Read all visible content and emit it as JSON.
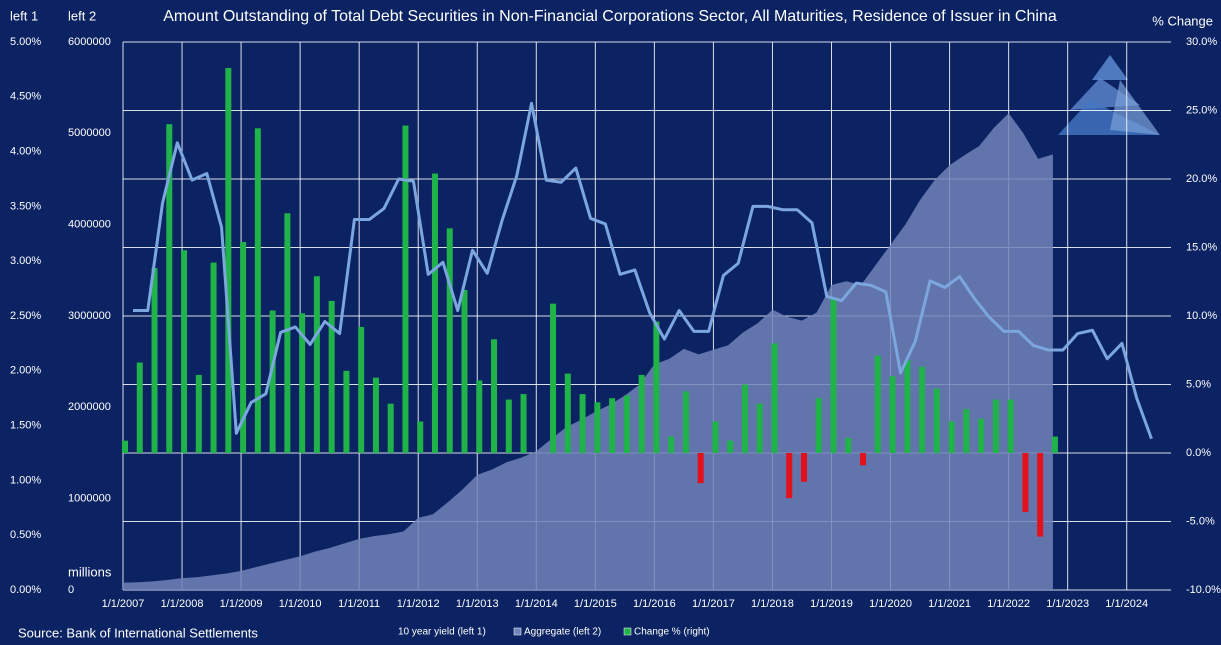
{
  "chart_data": {
    "type": "combo",
    "title": "Amount Outstanding of Total Debt Securities in Non-Financial Corporations Sector, All Maturities, Residence of Issuer in China",
    "y_label": "left 1",
    "y2_label": "left 2",
    "y3_label": "% Change",
    "y2_unit": "millions",
    "source": "Source: Bank of International Settlements",
    "background": "#0c2363",
    "grid": true,
    "x": [
      "2007-01-01",
      "2007-04-01",
      "2007-07-01",
      "2007-10-01",
      "2008-01-01",
      "2008-04-01",
      "2008-07-01",
      "2008-10-01",
      "2009-01-01",
      "2009-04-01",
      "2009-07-01",
      "2009-10-01",
      "2010-01-01",
      "2010-04-01",
      "2010-07-01",
      "2010-10-01",
      "2011-01-01",
      "2011-04-01",
      "2011-07-01",
      "2011-10-01",
      "2012-01-01",
      "2012-04-01",
      "2012-07-01",
      "2012-10-01",
      "2013-01-01",
      "2013-04-01",
      "2013-07-01",
      "2013-10-01",
      "2014-01-01",
      "2014-04-01",
      "2014-07-01",
      "2014-10-01",
      "2015-01-01",
      "2015-04-01",
      "2015-07-01",
      "2015-10-01",
      "2016-01-01",
      "2016-04-01",
      "2016-07-01",
      "2016-10-01",
      "2017-01-01",
      "2017-04-01",
      "2017-07-01",
      "2017-10-01",
      "2018-01-01",
      "2018-04-01",
      "2018-07-01",
      "2018-10-01",
      "2019-01-01",
      "2019-04-01",
      "2019-07-01",
      "2019-10-01",
      "2020-01-01",
      "2020-04-01",
      "2020-07-01",
      "2020-10-01",
      "2021-01-01",
      "2021-04-01",
      "2021-07-01",
      "2021-10-01",
      "2022-01-01",
      "2022-04-01",
      "2022-07-01",
      "2022-10-01",
      "2023-01-01",
      "2023-04-01",
      "2023-07-01",
      "2023-10-01",
      "2024-01-01",
      "2024-04-01"
    ],
    "xlim": [
      "2007-01-01",
      "2024-10-01"
    ],
    "xticks": [
      {
        "value": "2007-01-01",
        "label": "1/1/2007"
      },
      {
        "value": "2008-01-01",
        "label": "1/1/2008"
      },
      {
        "value": "2009-01-01",
        "label": "1/1/2009"
      },
      {
        "value": "2010-01-01",
        "label": "1/1/2010"
      },
      {
        "value": "2011-01-01",
        "label": "1/1/2011"
      },
      {
        "value": "2012-01-01",
        "label": "1/1/2012"
      },
      {
        "value": "2013-01-01",
        "label": "1/1/2013"
      },
      {
        "value": "2014-01-01",
        "label": "1/1/2014"
      },
      {
        "value": "2015-01-01",
        "label": "1/1/2015"
      },
      {
        "value": "2016-01-01",
        "label": "1/1/2016"
      },
      {
        "value": "2017-01-01",
        "label": "1/1/2017"
      },
      {
        "value": "2018-01-01",
        "label": "1/1/2018"
      },
      {
        "value": "2019-01-01",
        "label": "1/1/2019"
      },
      {
        "value": "2020-01-01",
        "label": "1/1/2020"
      },
      {
        "value": "2021-01-01",
        "label": "1/1/2021"
      },
      {
        "value": "2022-01-01",
        "label": "1/1/2022"
      },
      {
        "value": "2023-01-01",
        "label": "1/1/2023"
      },
      {
        "value": "2024-01-01",
        "label": "1/1/2024"
      }
    ],
    "ylim": [
      0,
      5
    ],
    "yticks": [
      {
        "value": 0,
        "label": "0.00%"
      },
      {
        "value": 0.5,
        "label": "0.50%"
      },
      {
        "value": 1,
        "label": "1.00%"
      },
      {
        "value": 1.5,
        "label": "1.50%"
      },
      {
        "value": 2,
        "label": "2.00%"
      },
      {
        "value": 2.5,
        "label": "2.50%"
      },
      {
        "value": 3,
        "label": "3.00%"
      },
      {
        "value": 3.5,
        "label": "3.50%"
      },
      {
        "value": 4,
        "label": "4.00%"
      },
      {
        "value": 4.5,
        "label": "4.50%"
      },
      {
        "value": 5,
        "label": "5.00%"
      }
    ],
    "y2lim": [
      0,
      6000000
    ],
    "y2ticks": [
      0,
      1000000,
      2000000,
      3000000,
      4000000,
      5000000,
      6000000
    ],
    "y3lim": [
      -10,
      30
    ],
    "y3ticks": [
      {
        "value": -10,
        "label": "-10.0%"
      },
      {
        "value": -5,
        "label": "-5.0%"
      },
      {
        "value": 0,
        "label": "0.0%"
      },
      {
        "value": 5,
        "label": "5.0%"
      },
      {
        "value": 10,
        "label": "10.0%"
      },
      {
        "value": 15,
        "label": "15.0%"
      },
      {
        "value": 20,
        "label": "20.0%"
      },
      {
        "value": 25,
        "label": "25.0%"
      },
      {
        "value": 30,
        "label": "30.0%"
      }
    ],
    "series": [
      {
        "name": "10 year yield (left 1)",
        "kind": "line",
        "axis": "y",
        "color": "#7ba6de",
        "values": [
          2.55,
          2.55,
          3.53,
          4.08,
          3.74,
          3.8,
          3.31,
          1.43,
          1.71,
          1.79,
          2.35,
          2.4,
          2.24,
          2.45,
          2.34,
          3.38,
          3.38,
          3.48,
          3.75,
          3.73,
          2.88,
          2.99,
          2.55,
          3.1,
          2.89,
          3.37,
          3.78,
          4.44,
          3.74,
          3.72,
          3.85,
          3.39,
          3.34,
          2.88,
          2.92,
          2.53,
          2.29,
          2.55,
          2.36,
          2.36,
          2.87,
          2.98,
          3.5,
          3.5,
          3.47,
          3.47,
          3.35,
          2.68,
          2.64,
          2.8,
          2.78,
          2.72,
          1.98,
          2.27,
          2.82,
          2.76,
          2.86,
          2.66,
          2.49,
          2.36,
          2.36,
          2.23,
          2.19,
          2.19,
          2.34,
          2.37,
          2.11,
          2.25,
          1.75,
          1.38
        ]
      },
      {
        "name": "Aggregate (left 2)",
        "kind": "area",
        "axis": "y2",
        "color": "#7184b9",
        "values": [
          80000,
          85000,
          95000,
          110000,
          130000,
          140000,
          160000,
          180000,
          210000,
          250000,
          290000,
          330000,
          370000,
          420000,
          460000,
          510000,
          560000,
          590000,
          610000,
          640000,
          790000,
          830000,
          960000,
          1100000,
          1260000,
          1320000,
          1400000,
          1450000,
          1520000,
          1650000,
          1780000,
          1860000,
          1950000,
          2030000,
          2130000,
          2250000,
          2470000,
          2530000,
          2640000,
          2580000,
          2630000,
          2680000,
          2820000,
          2920000,
          3070000,
          2990000,
          2950000,
          3040000,
          3340000,
          3380000,
          3340000,
          3560000,
          3780000,
          4000000,
          4270000,
          4490000,
          4650000,
          4760000,
          4860000,
          5060000,
          5220000,
          5000000,
          4720000,
          4770000,
          null,
          null,
          null,
          null,
          null,
          null
        ]
      },
      {
        "name": "Change % (right)",
        "kind": "bar",
        "axis": "y3",
        "color": "#1fb34a",
        "negative_color": "#e3111b",
        "values": [
          0.9,
          6.6,
          13.5,
          24.0,
          14.8,
          5.7,
          13.9,
          28.1,
          15.4,
          23.7,
          10.4,
          17.5,
          10.2,
          12.9,
          11.1,
          6.0,
          9.2,
          5.5,
          3.6,
          23.9,
          2.3,
          20.4,
          16.4,
          11.9,
          5.3,
          8.3,
          3.9,
          4.3,
          0.0,
          10.9,
          5.8,
          4.3,
          3.7,
          4.0,
          4.2,
          5.7,
          9.6,
          1.2,
          4.5,
          -2.2,
          2.3,
          0.9,
          5.0,
          3.6,
          8.0,
          -3.3,
          -2.1,
          4.0,
          11.3,
          1.1,
          -0.9,
          7.1,
          5.6,
          6.8,
          6.3,
          4.7,
          2.3,
          3.2,
          2.5,
          3.9,
          3.9,
          -4.3,
          -6.1,
          1.2,
          null,
          null,
          null,
          null,
          null,
          null
        ]
      }
    ]
  }
}
